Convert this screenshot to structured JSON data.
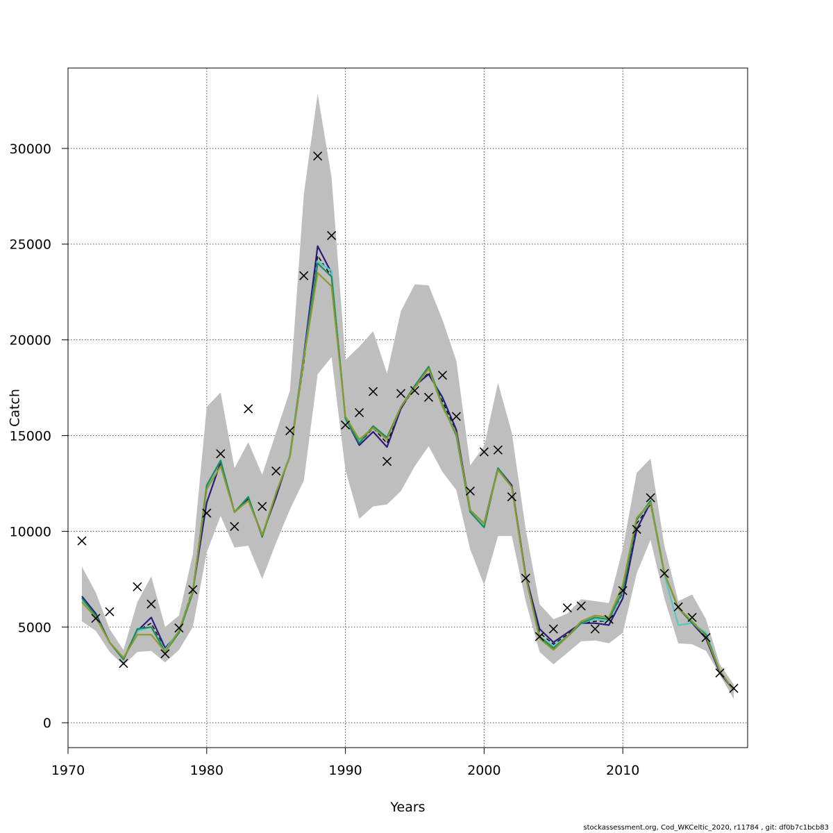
{
  "chart_data": {
    "type": "line",
    "xlabel": "Years",
    "ylabel": "Catch",
    "xlim": [
      1970,
      2019
    ],
    "ylim": [
      -1300,
      34200
    ],
    "x_ticks": [
      1970,
      1980,
      1990,
      2000,
      2010
    ],
    "y_ticks": [
      0,
      5000,
      10000,
      15000,
      20000,
      25000,
      30000
    ],
    "grid": true,
    "years": [
      1971,
      1972,
      1973,
      1974,
      1975,
      1976,
      1977,
      1978,
      1979,
      1980,
      1981,
      1982,
      1983,
      1984,
      1985,
      1986,
      1987,
      1988,
      1989,
      1990,
      1991,
      1992,
      1993,
      1994,
      1995,
      1996,
      1997,
      1998,
      1999,
      2000,
      2001,
      2002,
      2003,
      2004,
      2005,
      2006,
      2007,
      2008,
      2009,
      2010,
      2011,
      2012,
      2013,
      2014,
      2015,
      2016,
      2017,
      2018
    ],
    "confidence_band": {
      "color": "#bebebe",
      "upper": [
        8150,
        6800,
        4900,
        3800,
        6300,
        7650,
        5000,
        5600,
        8800,
        16500,
        17250,
        13300,
        14650,
        12950,
        15150,
        17350,
        27600,
        32850,
        28500,
        18950,
        19650,
        20450,
        18250,
        21500,
        22900,
        22850,
        21050,
        18900,
        13450,
        14450,
        17750,
        15150,
        10100,
        6200,
        5400,
        5700,
        6450,
        6350,
        6250,
        9100,
        13050,
        13800,
        9250,
        6350,
        6700,
        5400,
        3050,
        2000
      ],
      "lower": [
        5300,
        4800,
        3700,
        3000,
        3700,
        3750,
        3150,
        3800,
        5000,
        8900,
        10800,
        9150,
        9250,
        7500,
        9400,
        11150,
        12650,
        18200,
        19100,
        13200,
        10650,
        11300,
        11400,
        12100,
        13400,
        14450,
        13100,
        12150,
        9050,
        7200,
        9750,
        9750,
        6350,
        3700,
        3050,
        3650,
        4250,
        4300,
        4150,
        4700,
        7800,
        9550,
        6500,
        4150,
        4100,
        3750,
        2500,
        1250
      ]
    },
    "series": [
      {
        "color": "#000000",
        "dashed": true,
        "values": [
          6500,
          5700,
          4200,
          3300,
          4800,
          5200,
          3800,
          4800,
          7000,
          12400,
          13600,
          11000,
          11700,
          9800,
          12000,
          14000,
          18800,
          24400,
          23300,
          15800,
          14600,
          15400,
          14600,
          16400,
          17500,
          18300,
          16800,
          15200,
          11000,
          10400,
          13300,
          12400,
          7700,
          4700,
          4100,
          4600,
          5200,
          5300,
          5300,
          6800,
          10400,
          11400,
          7800,
          6000,
          5300,
          4600,
          2700,
          1700
        ]
      },
      {
        "color": "#2a1a7e",
        "values": [
          6600,
          5700,
          4200,
          3300,
          4800,
          5500,
          3900,
          4700,
          6900,
          11500,
          13600,
          11000,
          11700,
          9800,
          11800,
          14000,
          19200,
          24900,
          23500,
          15900,
          14500,
          15200,
          14400,
          16400,
          17600,
          18200,
          17000,
          15300,
          11100,
          10400,
          13300,
          12400,
          7700,
          4900,
          4200,
          4700,
          5200,
          5200,
          5100,
          6500,
          10100,
          11500,
          7800,
          6000,
          5200,
          4400,
          2600,
          1700
        ]
      },
      {
        "color": "#59c8c4",
        "values": [
          6400,
          5600,
          4200,
          3300,
          4800,
          5000,
          3800,
          4800,
          6900,
          12300,
          13700,
          11000,
          11800,
          9700,
          12000,
          14000,
          19100,
          24100,
          23600,
          15800,
          14700,
          15500,
          14800,
          16500,
          17600,
          18600,
          16600,
          15100,
          11000,
          10300,
          13300,
          12300,
          7600,
          4500,
          4000,
          4500,
          5200,
          5400,
          5300,
          6900,
          10600,
          11500,
          7700,
          5100,
          5200,
          4700,
          2700,
          1700
        ]
      },
      {
        "color": "#1a8c5e",
        "values": [
          6500,
          5600,
          4200,
          3300,
          4900,
          5000,
          3700,
          4700,
          6800,
          12400,
          13700,
          11000,
          11800,
          9700,
          12000,
          13900,
          19000,
          24000,
          23300,
          15900,
          14600,
          15500,
          14900,
          16500,
          17600,
          18600,
          16600,
          15000,
          11000,
          10200,
          13300,
          12300,
          7600,
          4500,
          3900,
          4500,
          5200,
          5500,
          5400,
          6900,
          10600,
          11600,
          7800,
          6000,
          5200,
          4600,
          2700,
          1700
        ]
      },
      {
        "color": "#8c9a2a",
        "values": [
          6300,
          5500,
          4200,
          3400,
          4600,
          4600,
          3700,
          4800,
          6900,
          12200,
          13400,
          11000,
          11600,
          9800,
          12000,
          13900,
          19000,
          23500,
          22800,
          16000,
          14800,
          15400,
          14800,
          16500,
          17500,
          18500,
          16500,
          15100,
          11100,
          10400,
          13200,
          12300,
          7600,
          4400,
          3800,
          4500,
          5300,
          5600,
          5500,
          7200,
          10700,
          11500,
          7800,
          6000,
          5300,
          4500,
          2700,
          1700
        ]
      }
    ],
    "observed": {
      "marker": "x",
      "years": [
        1971,
        1972,
        1973,
        1974,
        1975,
        1976,
        1977,
        1978,
        1979,
        1980,
        1981,
        1982,
        1983,
        1984,
        1985,
        1986,
        1987,
        1988,
        1989,
        1990,
        1991,
        1992,
        1993,
        1994,
        1995,
        1996,
        1997,
        1998,
        1999,
        2000,
        2001,
        2002,
        2003,
        2004,
        2005,
        2006,
        2007,
        2008,
        2009,
        2010,
        2011,
        2012,
        2013,
        2014,
        2015,
        2016,
        2017,
        2018
      ],
      "values": [
        9500,
        5450,
        5800,
        3100,
        7100,
        6200,
        3600,
        4950,
        6950,
        10950,
        14050,
        10250,
        16400,
        11300,
        13150,
        15250,
        23350,
        29600,
        25450,
        15550,
        16200,
        17300,
        13650,
        17200,
        17350,
        17000,
        18150,
        16000,
        12100,
        14150,
        14250,
        11800,
        7550,
        4500,
        4900,
        6000,
        6100,
        4900,
        5400,
        6900,
        10100,
        11750,
        7800,
        6050,
        5500,
        4450,
        2600,
        1800
      ]
    }
  },
  "footer": {
    "note": "stockassessment.org, Cod_WKCeltic_2020, r11784 , git: df0b7c1bcb83"
  }
}
